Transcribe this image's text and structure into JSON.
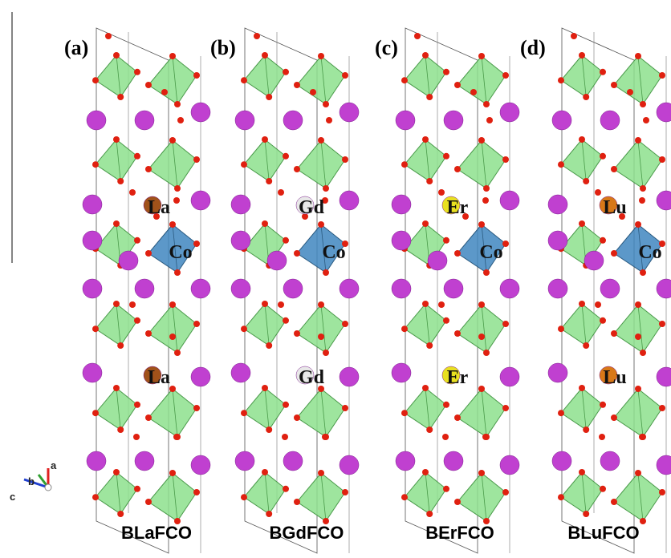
{
  "panels": [
    {
      "label": "(a)",
      "compound": "BLaFCO",
      "sites": [
        "La",
        "Co",
        "La"
      ]
    },
    {
      "label": "(b)",
      "compound": "BGdFCO",
      "sites": [
        "Gd",
        "Co",
        "Gd"
      ]
    },
    {
      "label": "(c)",
      "compound": "BErFCO",
      "sites": [
        "Er",
        "Co",
        "Er"
      ]
    },
    {
      "label": "(d)",
      "compound": "BLuFCO",
      "sites": [
        "Lu",
        "Co",
        "Lu"
      ]
    }
  ],
  "axes": {
    "a": "a",
    "b": "b",
    "c": "c"
  }
}
